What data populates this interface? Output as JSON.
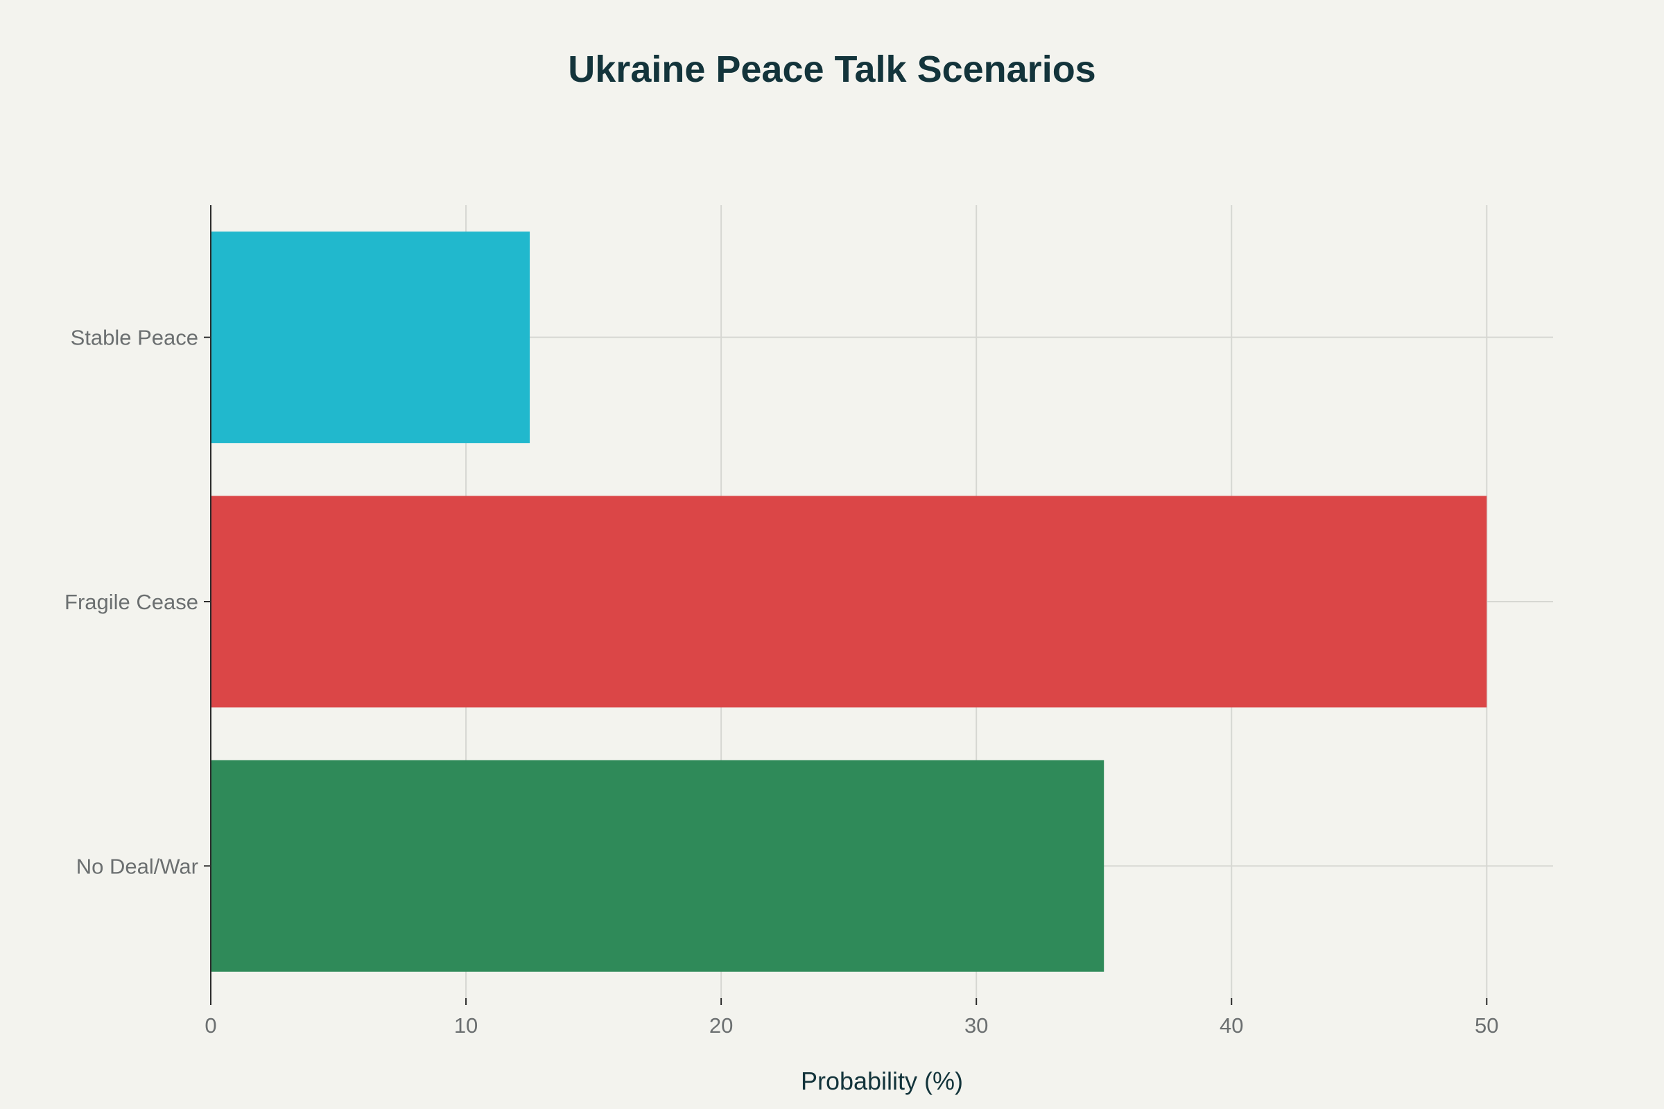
{
  "chart_data": {
    "type": "bar",
    "orientation": "horizontal",
    "title": "Ukraine Peace Talk Scenarios",
    "xlabel": "Probability (%)",
    "ylabel": "",
    "categories": [
      "Stable Peace",
      "Fragile Cease",
      "No Deal/War"
    ],
    "values": [
      12.5,
      50,
      35
    ],
    "colors": [
      "#21b8cd",
      "#db4647",
      "#2f8a59"
    ],
    "xlim": [
      0,
      52.6
    ],
    "xticks": [
      0,
      10,
      20,
      30,
      40,
      50
    ],
    "xtick_labels": [
      "0",
      "10",
      "20",
      "30",
      "40",
      "50"
    ],
    "grid": true,
    "legend": "none"
  }
}
